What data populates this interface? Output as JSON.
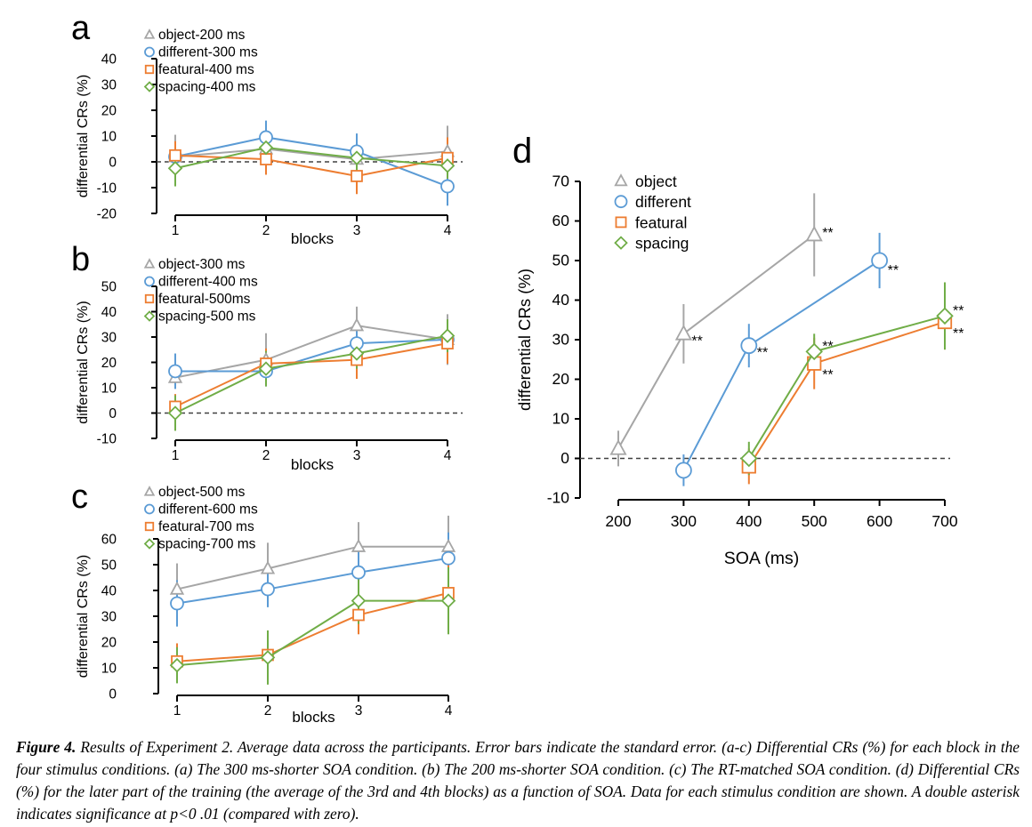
{
  "colors": {
    "object": "#a6a6a6",
    "different": "#5b9bd5",
    "featural": "#ed7d31",
    "spacing": "#70ad47",
    "axis": "#000000",
    "zero_line": "#404040"
  },
  "caption": {
    "label": "Figure 4.",
    "text": " Results of Experiment 2. Average data across the participants. Error bars indicate the standard error. (a-c) Differential CRs (%) for each block in the four stimulus conditions. (a) The 300 ms-shorter SOA condition. (b) The 200 ms-shorter SOA condition. (c) The RT-matched SOA condition. (d) Differential CRs (%) for the later part of the training (the average of the 3rd and 4th blocks) as a function of SOA. Data for each stimulus condition are shown. A double asterisk indicates significance at p<0 .01 (compared with zero)."
  },
  "chart_data": [
    {
      "panel": "a",
      "type": "line",
      "xlabel": "blocks",
      "ylabel": "differential CRs (%)",
      "categories": [
        "1",
        "2",
        "3",
        "4"
      ],
      "ylim": [
        -20,
        40
      ],
      "yticks": [
        -20,
        -10,
        0,
        10,
        20,
        30,
        40
      ],
      "zero_line": true,
      "legend_position": "top-left",
      "series": [
        {
          "key": "object",
          "name": "object-200 ms",
          "marker": "triangle",
          "values": [
            2,
            5,
            1,
            4
          ],
          "err": [
            8.5,
            3,
            2,
            10
          ]
        },
        {
          "key": "different",
          "name": "different-300 ms",
          "marker": "circle",
          "values": [
            2,
            9.5,
            4,
            -9.5
          ],
          "err": [
            3,
            6.5,
            7,
            7.5
          ]
        },
        {
          "key": "featural",
          "name": "featural-400 ms",
          "marker": "square",
          "values": [
            2.5,
            1,
            -5.5,
            1.5
          ],
          "err": [
            5.5,
            6,
            7,
            8
          ]
        },
        {
          "key": "spacing",
          "name": "spacing-400 ms",
          "marker": "diamond",
          "values": [
            -2.5,
            5.5,
            1.5,
            -1.5
          ],
          "err": [
            7,
            3,
            5,
            5
          ]
        }
      ]
    },
    {
      "panel": "b",
      "type": "line",
      "xlabel": "blocks",
      "ylabel": "differential CRs (%)",
      "categories": [
        "1",
        "2",
        "3",
        "4"
      ],
      "ylim": [
        -10,
        50
      ],
      "yticks": [
        -10,
        0,
        10,
        20,
        30,
        40,
        50
      ],
      "zero_line": true,
      "legend_position": "top-left",
      "series": [
        {
          "key": "object",
          "name": "object-300 ms",
          "marker": "triangle",
          "values": [
            14,
            21,
            34.5,
            29
          ],
          "err": [
            4,
            10.5,
            7.5,
            10
          ]
        },
        {
          "key": "different",
          "name": "different-400 ms",
          "marker": "circle",
          "values": [
            16.5,
            16.5,
            27.5,
            29
          ],
          "err": [
            7,
            6,
            5,
            7
          ]
        },
        {
          "key": "featural",
          "name": "featural-500ms",
          "marker": "square",
          "values": [
            2.5,
            19.5,
            21,
            27.5
          ],
          "err": [
            5,
            6,
            7.5,
            8
          ]
        },
        {
          "key": "spacing",
          "name": "spacing-500 ms",
          "marker": "diamond",
          "values": [
            0,
            17.5,
            23.5,
            30.5
          ],
          "err": [
            7,
            7,
            6,
            6.5
          ]
        }
      ]
    },
    {
      "panel": "c",
      "type": "line",
      "xlabel": "blocks",
      "ylabel": "differential CRs (%)",
      "categories": [
        "1",
        "2",
        "3",
        "4"
      ],
      "ylim": [
        0,
        60
      ],
      "yticks": [
        0,
        10,
        20,
        30,
        40,
        50,
        60
      ],
      "zero_line": false,
      "legend_position": "top-left",
      "series": [
        {
          "key": "object",
          "name": "object-500 ms",
          "marker": "triangle",
          "values": [
            40.5,
            48.5,
            57,
            57
          ],
          "err": [
            10,
            10,
            9.5,
            12
          ]
        },
        {
          "key": "different",
          "name": "different-600 ms",
          "marker": "circle",
          "values": [
            35,
            40.5,
            47,
            52.5
          ],
          "err": [
            9,
            7,
            8,
            10
          ]
        },
        {
          "key": "featural",
          "name": "featural-700 ms",
          "marker": "square",
          "values": [
            12.5,
            15,
            30.5,
            39
          ],
          "err": [
            7,
            9.5,
            7.5,
            13
          ]
        },
        {
          "key": "spacing",
          "name": "spacing-700 ms",
          "marker": "diamond",
          "values": [
            11,
            14,
            36,
            36
          ],
          "err": [
            7,
            10.5,
            9,
            13
          ]
        }
      ]
    },
    {
      "panel": "d",
      "type": "line",
      "xlabel": "SOA (ms)",
      "ylabel": "differential CRs (%)",
      "x_ticks": [
        200,
        300,
        400,
        500,
        600,
        700
      ],
      "xlim": [
        200,
        700
      ],
      "ylim": [
        -10,
        70
      ],
      "yticks": [
        -10,
        0,
        10,
        20,
        30,
        40,
        50,
        60,
        70
      ],
      "zero_line": true,
      "legend_position": "top-left",
      "significance_marker": "**",
      "series": [
        {
          "key": "object",
          "name": "object",
          "marker": "triangle",
          "x": [
            200,
            300,
            500
          ],
          "values": [
            2.5,
            31.5,
            56.5
          ],
          "err": [
            4.5,
            7.5,
            10.5
          ],
          "sig": [
            false,
            true,
            true
          ]
        },
        {
          "key": "different",
          "name": "different",
          "marker": "circle",
          "x": [
            300,
            400,
            600
          ],
          "values": [
            -3,
            28.5,
            50
          ],
          "err": [
            4,
            5.5,
            7
          ],
          "sig": [
            false,
            true,
            true
          ]
        },
        {
          "key": "featural",
          "name": "featural",
          "marker": "square",
          "x": [
            400,
            500,
            700
          ],
          "values": [
            -2,
            24,
            34.5
          ],
          "err": [
            4.5,
            6.5,
            7
          ],
          "sig": [
            false,
            true,
            true
          ]
        },
        {
          "key": "spacing",
          "name": "spacing",
          "marker": "diamond",
          "x": [
            400,
            500,
            700
          ],
          "values": [
            0,
            27,
            36
          ],
          "err": [
            4.2,
            4.5,
            8.5
          ],
          "sig": [
            false,
            true,
            true
          ]
        }
      ]
    }
  ]
}
